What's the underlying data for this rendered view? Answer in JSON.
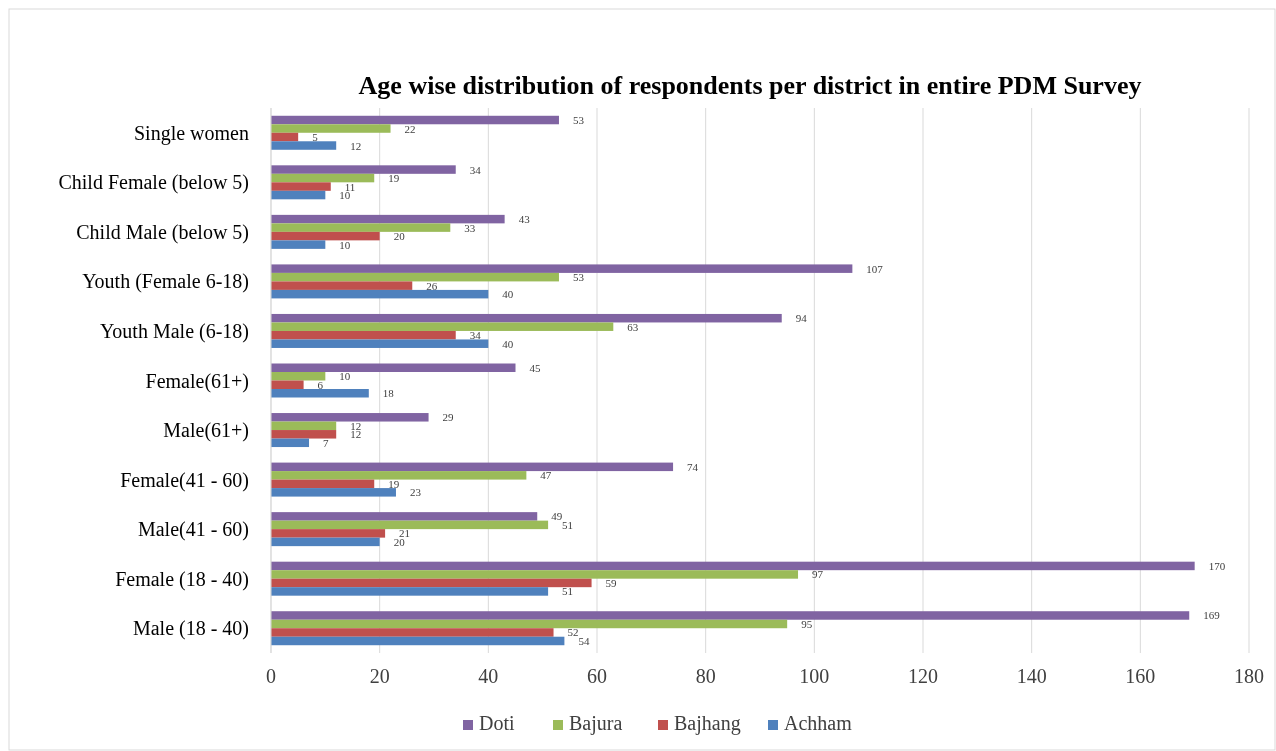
{
  "chart_data": {
    "type": "bar",
    "orientation": "horizontal",
    "title": "Age wise distribution of respondents per district in entire PDM Survey",
    "categories": [
      "Single women",
      "Child Female (below 5)",
      "Child Male (below 5)",
      "Youth (Female 6-18)",
      "Youth Male (6-18)",
      "Female(61+)",
      "Male(61+)",
      "Female(41 - 60)",
      "Male(41 - 60)",
      "Female (18 - 40)",
      "Male (18 - 40)"
    ],
    "series": [
      {
        "name": "Doti",
        "color": "#8064a2",
        "values": [
          53,
          34,
          43,
          107,
          94,
          45,
          29,
          74,
          49,
          170,
          169
        ]
      },
      {
        "name": "Bajura",
        "color": "#9bbb59",
        "values": [
          22,
          19,
          33,
          53,
          63,
          10,
          12,
          47,
          51,
          97,
          95
        ]
      },
      {
        "name": "Bajhang",
        "color": "#c0504d",
        "values": [
          5,
          11,
          20,
          26,
          34,
          6,
          12,
          19,
          21,
          59,
          52
        ]
      },
      {
        "name": "Achham",
        "color": "#4f81bd",
        "values": [
          12,
          10,
          10,
          40,
          40,
          18,
          7,
          23,
          20,
          51,
          54
        ]
      }
    ],
    "xlim": [
      0,
      180
    ],
    "xticks": [
      0,
      20,
      40,
      60,
      80,
      100,
      120,
      140,
      160,
      180
    ],
    "grid": "x",
    "legend": "bottom",
    "data_labels": true
  }
}
